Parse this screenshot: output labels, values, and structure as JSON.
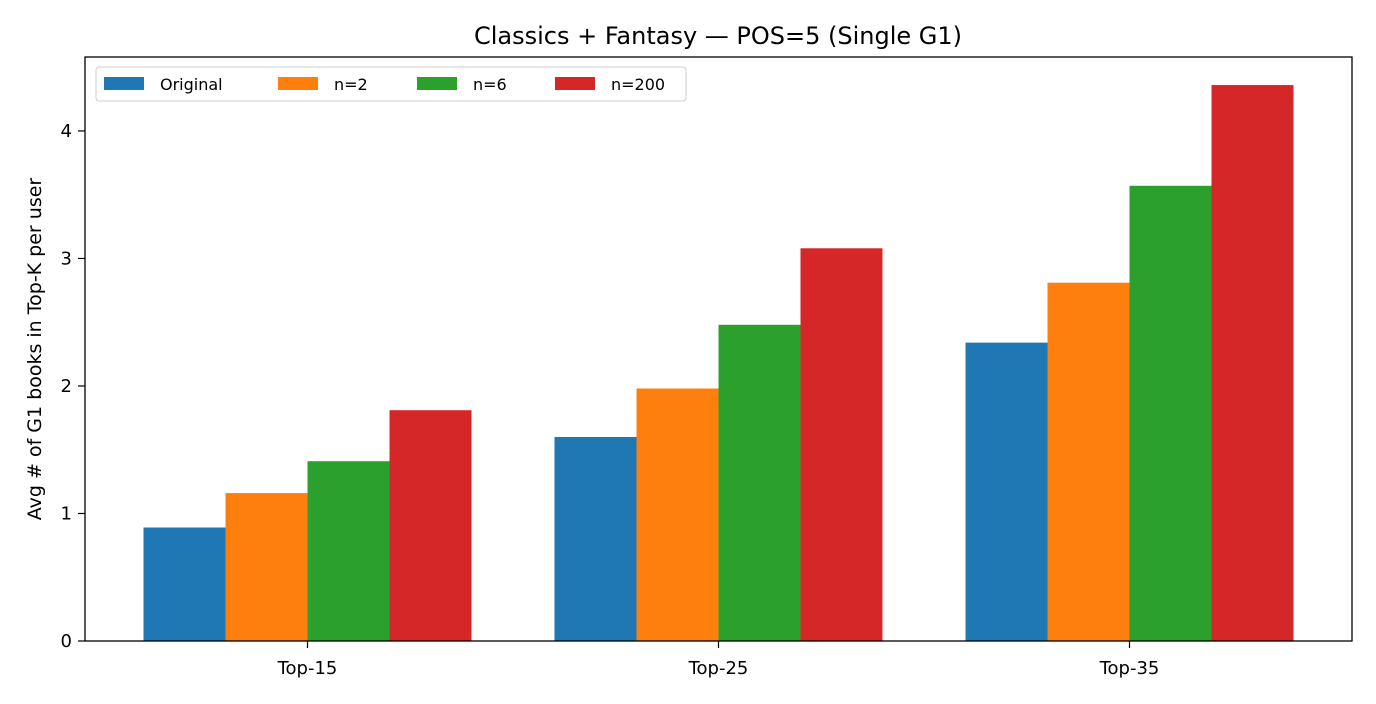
{
  "chart_data": {
    "type": "bar",
    "title": "Classics + Fantasy — POS=5 (Single G1)",
    "xlabel": "",
    "ylabel": "Avg # of G1 books in Top-K per user",
    "categories": [
      "Top-15",
      "Top-25",
      "Top-35"
    ],
    "series": [
      {
        "name": "Original",
        "color": "#1f77b4",
        "values": [
          0.89,
          1.6,
          2.34
        ]
      },
      {
        "name": "n=2",
        "color": "#ff7f0e",
        "values": [
          1.16,
          1.98,
          2.81
        ]
      },
      {
        "name": "n=6",
        "color": "#2ca02c",
        "values": [
          1.41,
          2.48,
          3.57
        ]
      },
      {
        "name": "n=200",
        "color": "#d62728",
        "values": [
          1.81,
          3.08,
          4.36
        ]
      }
    ],
    "ylim": [
      0,
      4.58
    ],
    "yticks": [
      0,
      1,
      2,
      3,
      4
    ],
    "grid": false,
    "legend": {
      "placement": "top-left",
      "columns": 4
    }
  }
}
